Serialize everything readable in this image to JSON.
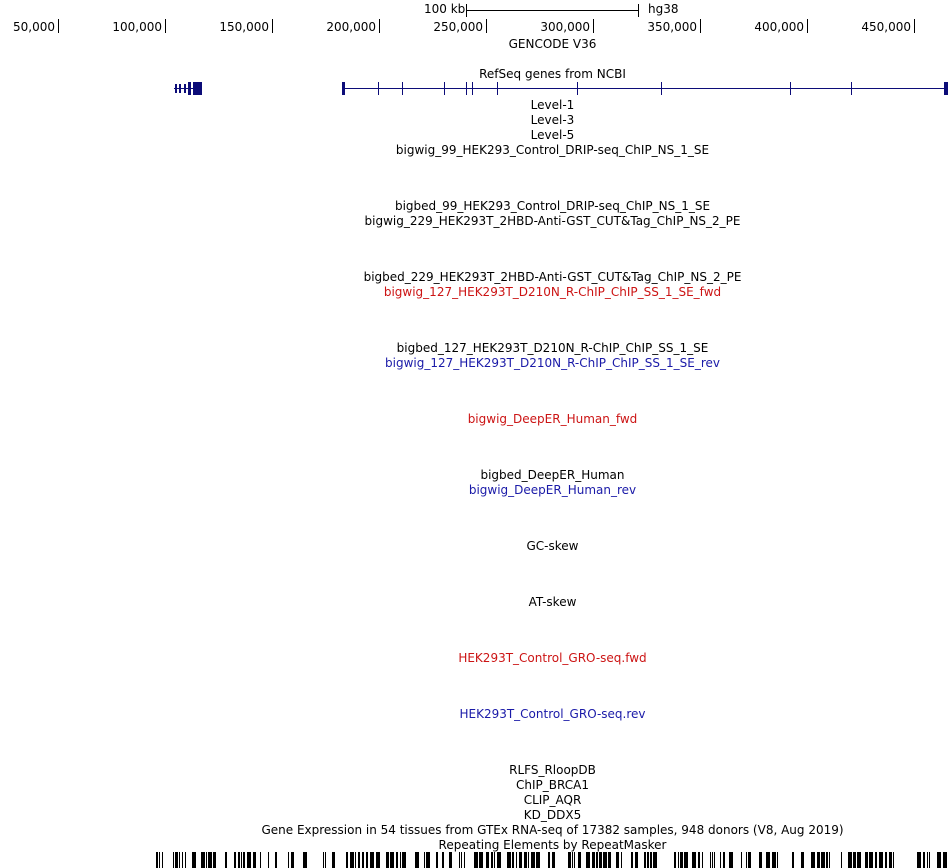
{
  "scale": {
    "size_label": "100 kb",
    "assembly": "hg38"
  },
  "ruler": {
    "labels": [
      "50,000",
      "100,000",
      "150,000",
      "200,000",
      "250,000",
      "300,000",
      "350,000",
      "400,000",
      "450,000"
    ],
    "start": 23000,
    "end": 467000
  },
  "tracks": [
    {
      "key": "gencode",
      "label": "GENCODE V36",
      "color": "#000000"
    },
    {
      "key": "refseq",
      "label": "RefSeq genes from NCBI",
      "color": "#000000"
    },
    {
      "key": "level1",
      "label": "Level-1",
      "color": "#000000"
    },
    {
      "key": "level3",
      "label": "Level-3",
      "color": "#000000"
    },
    {
      "key": "level5",
      "label": "Level-5",
      "color": "#000000"
    },
    {
      "key": "bigwig99",
      "label": "bigwig_99_HEK293_Control_DRIP-seq_ChIP_NS_1_SE",
      "color": "#000000"
    },
    {
      "key": "bigbed99",
      "label": "bigbed_99_HEK293_Control_DRIP-seq_ChIP_NS_1_SE",
      "color": "#000000"
    },
    {
      "key": "bigwig229",
      "label": "bigwig_229_HEK293T_2HBD-Anti-GST_CUT&Tag_ChIP_NS_2_PE",
      "color": "#000000"
    },
    {
      "key": "bigbed229",
      "label": "bigbed_229_HEK293T_2HBD-Anti-GST_CUT&Tag_ChIP_NS_2_PE",
      "color": "#000000"
    },
    {
      "key": "bigwig127fwd",
      "label": "bigwig_127_HEK293T_D210N_R-ChIP_ChIP_SS_1_SE_fwd",
      "color": "#cc1414"
    },
    {
      "key": "bigbed127",
      "label": "bigbed_127_HEK293T_D210N_R-ChIP_ChIP_SS_1_SE",
      "color": "#000000"
    },
    {
      "key": "bigwig127rev",
      "label": "bigwig_127_HEK293T_D210N_R-ChIP_ChIP_SS_1_SE_rev",
      "color": "#1a1aa8"
    },
    {
      "key": "deeperfwd",
      "label": "bigwig_DeepER_Human_fwd",
      "color": "#cc1414"
    },
    {
      "key": "deeperbed",
      "label": "bigbed_DeepER_Human",
      "color": "#000000"
    },
    {
      "key": "deeperrev",
      "label": "bigwig_DeepER_Human_rev",
      "color": "#1a1aa8"
    },
    {
      "key": "gcskew",
      "label": "GC-skew",
      "color": "#000000"
    },
    {
      "key": "atskew",
      "label": "AT-skew",
      "color": "#000000"
    },
    {
      "key": "grofwd",
      "label": "HEK293T_Control_GRO-seq.fwd",
      "color": "#cc1414"
    },
    {
      "key": "grorev",
      "label": "HEK293T_Control_GRO-seq.rev",
      "color": "#1a1aa8"
    },
    {
      "key": "rlfs",
      "label": "RLFS_RloopDB",
      "color": "#000000"
    },
    {
      "key": "brca1",
      "label": "ChIP_BRCA1",
      "color": "#000000"
    },
    {
      "key": "aqr",
      "label": "CLIP_AQR",
      "color": "#000000"
    },
    {
      "key": "ddx5",
      "label": "KD_DDX5",
      "color": "#000000"
    },
    {
      "key": "gtex",
      "label": "Gene Expression in 54 tissues from GTEx RNA-seq of 17382 samples, 948 donors (V8, Aug 2019)",
      "color": "#000000"
    },
    {
      "key": "rmsk",
      "label": "Repeating Elements by RepeatMasker",
      "color": "#000000"
    }
  ],
  "colors": {
    "gene": "#0c0c78",
    "fwd": "#cc1414",
    "rev": "#1a1aa8"
  }
}
